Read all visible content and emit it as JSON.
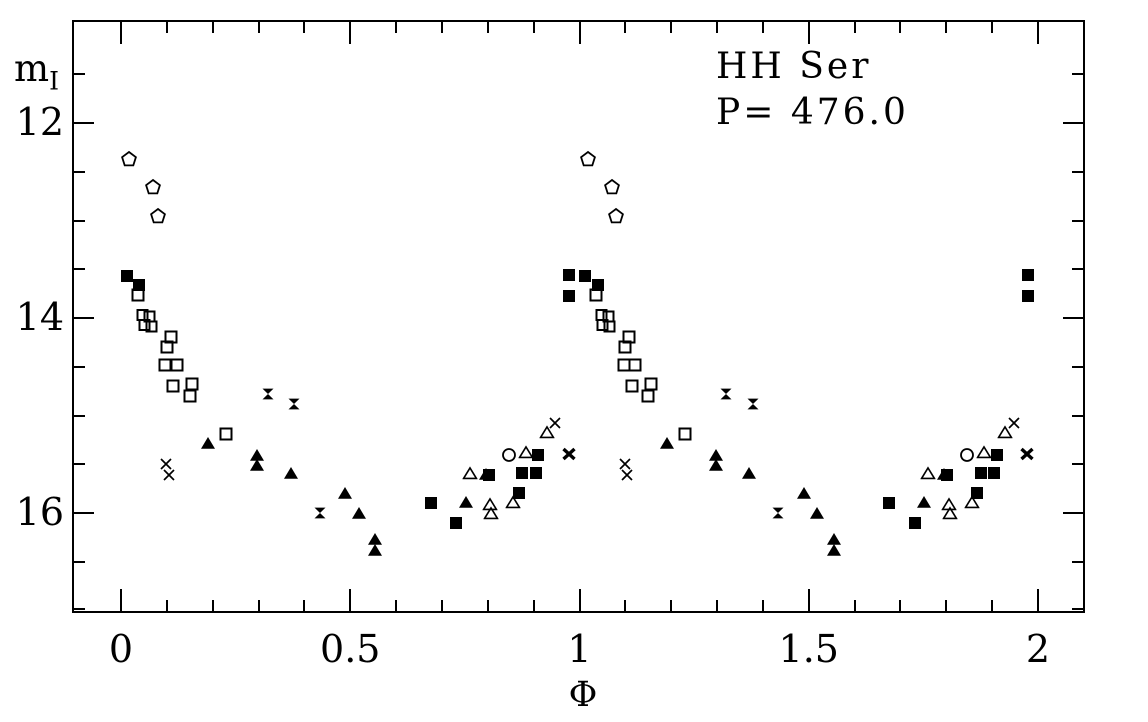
{
  "figure": {
    "background_color": "#ffffff",
    "marker_color": "#000000",
    "y_axis_label_main": "m",
    "y_axis_label_sub": "I",
    "x_axis_label": "Φ"
  },
  "chart_data": {
    "type": "scatter",
    "title": "HH Ser",
    "subtitle": "P= 476.0",
    "xlabel": "Φ",
    "ylabel": "m_I",
    "x_axis": {
      "lim": [
        -0.107,
        2.103
      ],
      "major_ticks": [
        0,
        0.5,
        1,
        1.5,
        2
      ],
      "tick_labels": [
        "0",
        "0.5",
        "1",
        "1.5",
        "2"
      ],
      "minor_step": 0.1,
      "minor_range": [
        0,
        2
      ]
    },
    "y_axis": {
      "lim": [
        17.05,
        10.94
      ],
      "inverted": true,
      "major_ticks": [
        12,
        14,
        16
      ],
      "tick_labels": [
        "12",
        "14",
        "16"
      ],
      "minor_step": 0.5,
      "minor_range": [
        11.5,
        17
      ]
    },
    "grid": false,
    "legend": null,
    "phase_offsets": [
      0,
      1
    ],
    "series": [
      {
        "name": "open-pentagon",
        "marker": "open-pentagon",
        "points": [
          [
            0.018,
            12.37
          ],
          [
            0.07,
            12.66
          ],
          [
            0.08,
            12.95
          ]
        ]
      },
      {
        "name": "filled-square",
        "marker": "filled-square",
        "points": [
          [
            0.012,
            13.57
          ],
          [
            0.04,
            13.66
          ],
          [
            0.676,
            15.9
          ],
          [
            0.731,
            16.1
          ],
          [
            0.802,
            15.61
          ],
          [
            0.868,
            15.79
          ],
          [
            0.875,
            15.59
          ],
          [
            0.905,
            15.59
          ],
          [
            0.91,
            15.4
          ],
          [
            0.978,
            13.56
          ],
          [
            0.978,
            13.77
          ]
        ]
      },
      {
        "name": "open-square",
        "marker": "open-square",
        "points": [
          [
            0.036,
            13.76
          ],
          [
            0.096,
            14.48
          ],
          [
            0.1,
            14.3
          ],
          [
            0.108,
            14.19
          ],
          [
            0.114,
            14.7
          ],
          [
            0.122,
            14.48
          ],
          [
            0.15,
            14.8
          ],
          [
            0.155,
            14.68
          ],
          [
            0.23,
            15.19
          ]
        ]
      },
      {
        "name": "double-open-square",
        "marker": "double-open-square",
        "points": [
          [
            0.055,
            13.98
          ],
          [
            0.058,
            14.08
          ]
        ]
      },
      {
        "name": "filled-triangle",
        "marker": "filled-triangle",
        "points": [
          [
            0.19,
            15.28
          ],
          [
            0.297,
            15.4
          ],
          [
            0.297,
            15.51
          ],
          [
            0.37,
            15.59
          ],
          [
            0.489,
            15.79
          ],
          [
            0.519,
            16.0
          ],
          [
            0.554,
            16.27
          ],
          [
            0.554,
            16.38
          ],
          [
            0.752,
            15.89
          ],
          [
            0.795,
            15.6
          ]
        ]
      },
      {
        "name": "open-triangle",
        "marker": "open-triangle",
        "points": [
          [
            0.761,
            15.59
          ],
          [
            0.805,
            15.91
          ],
          [
            0.807,
            16.0
          ],
          [
            0.855,
            15.89
          ],
          [
            0.883,
            15.37
          ],
          [
            0.929,
            15.17
          ]
        ]
      },
      {
        "name": "cross",
        "marker": "cross",
        "points": [
          [
            0.099,
            15.5
          ],
          [
            0.104,
            15.61
          ],
          [
            0.947,
            15.08
          ]
        ]
      },
      {
        "name": "hourglass",
        "marker": "hourglass",
        "points": [
          [
            0.32,
            14.78
          ],
          [
            0.378,
            14.88
          ],
          [
            0.433,
            16.0
          ]
        ]
      },
      {
        "name": "asterisk",
        "marker": "asterisk",
        "points": [
          [
            0.977,
            15.39
          ]
        ]
      },
      {
        "name": "open-circle",
        "marker": "open-circle",
        "points": [
          [
            0.846,
            15.4
          ]
        ]
      }
    ]
  }
}
